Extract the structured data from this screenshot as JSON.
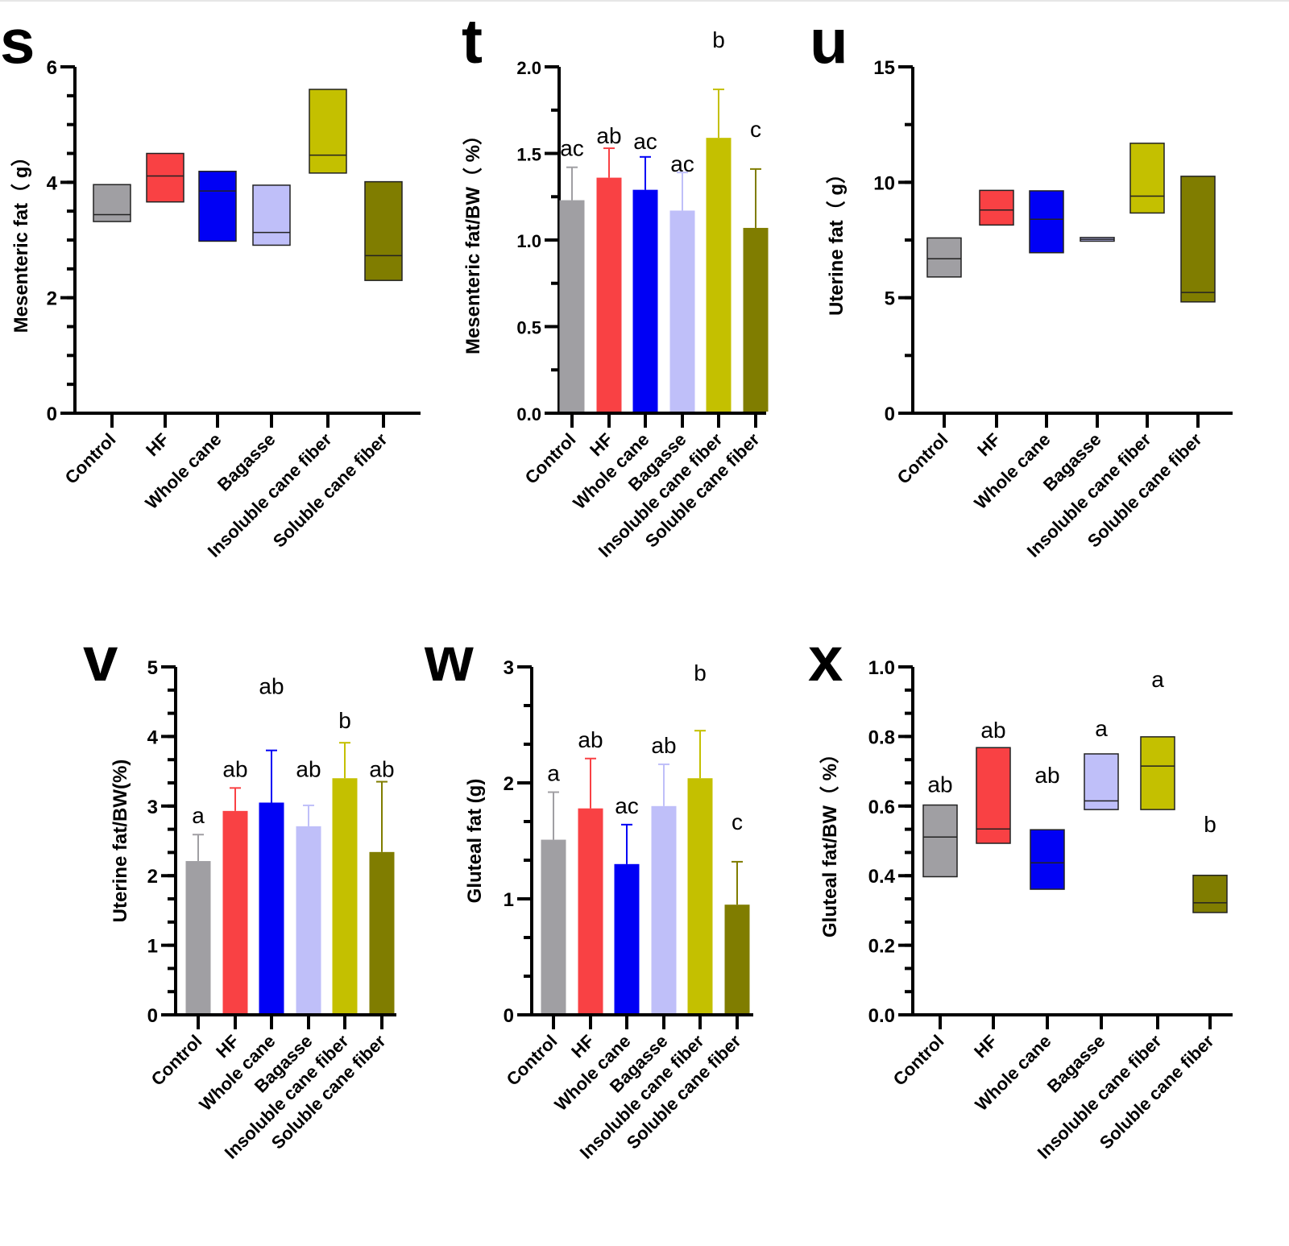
{
  "figure": {
    "groups": [
      "Control",
      "HF",
      "Whole cane",
      "Bagasse",
      "Insoluble cane fiber",
      "Soluble cane fiber"
    ],
    "group_colors": {
      "Control": "#a09fa3",
      "HF": "#f94144",
      "Whole cane": "#0000f5",
      "Bagasse": "#bfbff9",
      "Insoluble cane fiber": "#c4c000",
      "Soluble cane fiber": "#807d00"
    }
  },
  "chart_data": [
    {
      "panel": "s",
      "type": "box",
      "title": "",
      "xlabel": "",
      "ylabel": "Mesenteric fat（ g）",
      "ylim": [
        0,
        6
      ],
      "yticks": [
        0,
        2,
        4,
        6
      ],
      "ytick_labels": [
        "0",
        "2",
        "4",
        "6"
      ],
      "minor_step": 0.5,
      "categories": [
        "Control",
        "HF",
        "Whole cane",
        "Bagasse",
        "Insoluble cane fiber",
        "Soluble cane fiber"
      ],
      "series": [
        {
          "name": "Control",
          "min": 3.32,
          "median": 3.44,
          "max": 3.96
        },
        {
          "name": "HF",
          "min": 3.66,
          "median": 4.11,
          "max": 4.5
        },
        {
          "name": "Whole cane",
          "min": 2.98,
          "median": 3.85,
          "max": 4.19
        },
        {
          "name": "Bagasse",
          "min": 2.91,
          "median": 3.13,
          "max": 3.95
        },
        {
          "name": "Insoluble cane fiber",
          "min": 4.16,
          "median": 4.47,
          "max": 5.61
        },
        {
          "name": "Soluble cane fiber",
          "min": 2.3,
          "median": 2.73,
          "max": 4.01
        }
      ],
      "annotations": [],
      "grid": false
    },
    {
      "panel": "t",
      "type": "bar",
      "title": "",
      "xlabel": "",
      "ylabel": "Mesenteric fat/BW（ %）",
      "ylim": [
        0,
        2.0
      ],
      "yticks": [
        0,
        0.5,
        1.0,
        1.5,
        2.0
      ],
      "ytick_labels": [
        "0.0",
        "0.5",
        "1.0",
        "1.5",
        "2.0"
      ],
      "minor_step": 0.25,
      "categories": [
        "Control",
        "HF",
        "Whole cane",
        "Bagasse",
        "Insoluble cane fiber",
        "Soluble cane fiber"
      ],
      "values": [
        1.23,
        1.36,
        1.29,
        1.17,
        1.59,
        1.07
      ],
      "error_upper": [
        1.42,
        1.53,
        1.48,
        1.39,
        1.87,
        1.41
      ],
      "annotations": [
        "ac",
        "ab",
        "ac",
        "ac",
        "b",
        "c"
      ],
      "grid": false
    },
    {
      "panel": "u",
      "type": "box",
      "title": "",
      "xlabel": "",
      "ylabel": "Uterine fat（ g）",
      "ylim": [
        0,
        15
      ],
      "yticks": [
        0,
        5,
        10,
        15
      ],
      "ytick_labels": [
        "0",
        "5",
        "10",
        "15"
      ],
      "minor_step": 2.5,
      "categories": [
        "Control",
        "HF",
        "Whole cane",
        "Bagasse",
        "Insoluble cane fiber",
        "Soluble cane fiber"
      ],
      "series": [
        {
          "name": "Control",
          "min": 5.9,
          "median": 6.69,
          "max": 7.59
        },
        {
          "name": "HF",
          "min": 8.15,
          "median": 8.8,
          "max": 9.65
        },
        {
          "name": "Whole cane",
          "min": 6.95,
          "median": 8.4,
          "max": 9.63
        },
        {
          "name": "Bagasse",
          "min": 7.45,
          "median": 7.53,
          "max": 7.61
        },
        {
          "name": "Insoluble cane fiber",
          "min": 8.67,
          "median": 9.4,
          "max": 11.69
        },
        {
          "name": "Soluble cane fiber",
          "min": 4.82,
          "median": 5.23,
          "max": 10.26
        }
      ],
      "annotations": [],
      "grid": false
    },
    {
      "panel": "v",
      "type": "bar",
      "title": "",
      "xlabel": "",
      "ylabel": "Uterine fat/BW(%)",
      "ylim": [
        0,
        5
      ],
      "yticks": [
        0,
        1,
        2,
        3,
        4,
        5
      ],
      "ytick_labels": [
        "0",
        "1",
        "2",
        "3",
        "4",
        "5"
      ],
      "minor_step": 0.333333,
      "categories": [
        "Control",
        "HF",
        "Whole cane",
        "Bagasse",
        "Insoluble cane fiber",
        "Soluble cane fiber"
      ],
      "values": [
        2.21,
        2.93,
        3.05,
        2.71,
        3.4,
        2.34
      ],
      "error_upper": [
        2.59,
        3.26,
        3.8,
        3.01,
        3.91,
        3.35
      ],
      "annotations": [
        "a",
        "ab",
        "ab",
        "ab",
        "b",
        "ab"
      ],
      "grid": false
    },
    {
      "panel": "w",
      "type": "bar",
      "title": "",
      "xlabel": "",
      "ylabel": "Gluteal fat (g)",
      "ylim": [
        0,
        3
      ],
      "yticks": [
        0,
        1,
        2,
        3
      ],
      "ytick_labels": [
        "0",
        "1",
        "2",
        "3"
      ],
      "minor_step": 0.333333,
      "categories": [
        "Control",
        "HF",
        "Whole cane",
        "Bagasse",
        "Insoluble cane fiber",
        "Soluble cane fiber"
      ],
      "values": [
        1.51,
        1.78,
        1.3,
        1.8,
        2.04,
        0.95
      ],
      "error_upper": [
        1.92,
        2.21,
        1.64,
        2.16,
        2.45,
        1.32
      ],
      "annotations": [
        "a",
        "ab",
        "ac",
        "ab",
        "b",
        "c"
      ],
      "grid": false
    },
    {
      "panel": "x",
      "type": "box",
      "title": "",
      "xlabel": "",
      "ylabel": "Gluteal fat/BW（ %）",
      "ylim": [
        0,
        1.0
      ],
      "yticks": [
        0,
        0.2,
        0.4,
        0.6,
        0.8,
        1.0
      ],
      "ytick_labels": [
        "0.0",
        "0.2",
        "0.4",
        "0.6",
        "0.8",
        "1.0"
      ],
      "minor_step": 0.066667,
      "categories": [
        "Control",
        "HF",
        "Whole cane",
        "Bagasse",
        "Insoluble cane fiber",
        "Soluble cane fiber"
      ],
      "series": [
        {
          "name": "Control",
          "min": 0.397,
          "median": 0.511,
          "max": 0.603
        },
        {
          "name": "HF",
          "min": 0.493,
          "median": 0.534,
          "max": 0.768
        },
        {
          "name": "Whole cane",
          "min": 0.361,
          "median": 0.437,
          "max": 0.532
        },
        {
          "name": "Bagasse",
          "min": 0.59,
          "median": 0.615,
          "max": 0.75
        },
        {
          "name": "Insoluble cane fiber",
          "min": 0.59,
          "median": 0.715,
          "max": 0.799
        },
        {
          "name": "Soluble cane fiber",
          "min": 0.294,
          "median": 0.322,
          "max": 0.401
        }
      ],
      "annotations": [
        "ab",
        "ab",
        "ab",
        "a",
        "a",
        "b"
      ],
      "grid": false
    }
  ]
}
